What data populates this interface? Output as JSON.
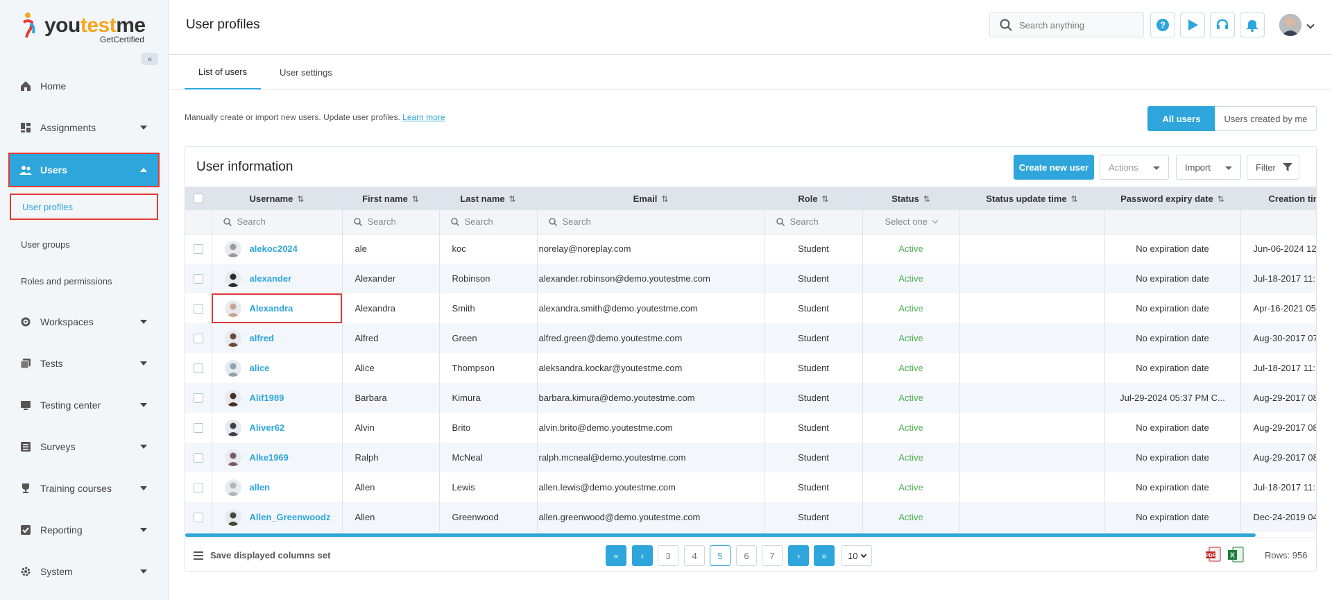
{
  "brand": {
    "name_part1": "you",
    "name_accent": "test",
    "name_part2": "me",
    "tagline": "GetCertified"
  },
  "sidebar": {
    "items": [
      {
        "label": "Home"
      },
      {
        "label": "Assignments"
      },
      {
        "label": "Users"
      },
      {
        "label": "Workspaces"
      },
      {
        "label": "Tests"
      },
      {
        "label": "Testing center"
      },
      {
        "label": "Surveys"
      },
      {
        "label": "Training courses"
      },
      {
        "label": "Reporting"
      },
      {
        "label": "System"
      }
    ],
    "sub_items": [
      {
        "label": "User profiles"
      },
      {
        "label": "User groups"
      },
      {
        "label": "Roles and permissions"
      }
    ]
  },
  "header": {
    "title": "User profiles",
    "search_placeholder": "Search anything"
  },
  "tabs": [
    {
      "label": "List of users"
    },
    {
      "label": "User settings"
    }
  ],
  "description": {
    "text": "Manually create or import new users. Update user profiles.",
    "link": "Learn more"
  },
  "view_toggle": {
    "all": "All users",
    "mine": "Users created by me"
  },
  "card": {
    "title": "User information",
    "create_button": "Create new user",
    "actions_button": "Actions",
    "import_button": "Import",
    "filter_button": "Filter"
  },
  "table": {
    "columns": [
      "Username",
      "First name",
      "Last name",
      "Email",
      "Role",
      "Status",
      "Status update time",
      "Password expiry date",
      "Creation time"
    ],
    "search_placeholder": "Search",
    "status_filter": "Select one",
    "rows": [
      {
        "username": "alekoc2024",
        "first": "ale",
        "last": "koc",
        "email": "norelay@noreplay.com",
        "role": "Student",
        "status": "Active",
        "status_time": "",
        "pwd_expiry": "No expiration date",
        "created": "Jun-06-2024 12",
        "avatar": "#9a9a9a"
      },
      {
        "username": "alexander",
        "first": "Alexander",
        "last": "Robinson",
        "email": "alexander.robinson@demo.youtestme.com",
        "role": "Student",
        "status": "Active",
        "status_time": "",
        "pwd_expiry": "No expiration date",
        "created": "Jul-18-2017 11:",
        "avatar": "#2b2b2b"
      },
      {
        "username": "Alexandra",
        "first": "Alexandra",
        "last": "Smith",
        "email": "alexandra.smith@demo.youtestme.com",
        "role": "Student",
        "status": "Active",
        "status_time": "",
        "pwd_expiry": "No expiration date",
        "created": "Apr-16-2021 05",
        "avatar": "#c9a58f"
      },
      {
        "username": "alfred",
        "first": "Alfred",
        "last": "Green",
        "email": "alfred.green@demo.youtestme.com",
        "role": "Student",
        "status": "Active",
        "status_time": "",
        "pwd_expiry": "No expiration date",
        "created": "Aug-30-2017 07",
        "avatar": "#6b4a3a"
      },
      {
        "username": "alice",
        "first": "Alice",
        "last": "Thompson",
        "email": "aleksandra.kockar@youtestme.com",
        "role": "Student",
        "status": "Active",
        "status_time": "",
        "pwd_expiry": "No expiration date",
        "created": "Jul-18-2017 11:",
        "avatar": "#8fa3ad"
      },
      {
        "username": "Alif1989",
        "first": "Barbara",
        "last": "Kimura",
        "email": "barbara.kimura@demo.youtestme.com",
        "role": "Student",
        "status": "Active",
        "status_time": "",
        "pwd_expiry": "Jul-29-2024 05:37 PM C...",
        "created": "Aug-29-2017 08",
        "avatar": "#4a2e22"
      },
      {
        "username": "Aliver62",
        "first": "Alvin",
        "last": "Brito",
        "email": "alvin.brito@demo.youtestme.com",
        "role": "Student",
        "status": "Active",
        "status_time": "",
        "pwd_expiry": "No expiration date",
        "created": "Aug-29-2017 08",
        "avatar": "#3d3f4a"
      },
      {
        "username": "Alke1969",
        "first": "Ralph",
        "last": "McNeal",
        "email": "ralph.mcneal@demo.youtestme.com",
        "role": "Student",
        "status": "Active",
        "status_time": "",
        "pwd_expiry": "No expiration date",
        "created": "Aug-29-2017 08",
        "avatar": "#7a5a66"
      },
      {
        "username": "allen",
        "first": "Allen",
        "last": "Lewis",
        "email": "allen.lewis@demo.youtestme.com",
        "role": "Student",
        "status": "Active",
        "status_time": "",
        "pwd_expiry": "No expiration date",
        "created": "Jul-18-2017 11:",
        "avatar": "#b0b5ba"
      },
      {
        "username": "Allen_Greenwoodz",
        "first": "Allen",
        "last": "Greenwood",
        "email": "allen.greenwood@demo.youtestme.com",
        "role": "Student",
        "status": "Active",
        "status_time": "",
        "pwd_expiry": "No expiration date",
        "created": "Dec-24-2019 04",
        "avatar": "#3e4a3a"
      }
    ]
  },
  "footer": {
    "save_columns": "Save displayed columns set",
    "pages": [
      "3",
      "4",
      "5",
      "6",
      "7"
    ],
    "current_page": "5",
    "page_size": "10",
    "rows_label": "Rows: 956"
  },
  "colors": {
    "accent": "#2ea6dc",
    "active_status": "#4caf50",
    "highlight": "#e53935"
  }
}
